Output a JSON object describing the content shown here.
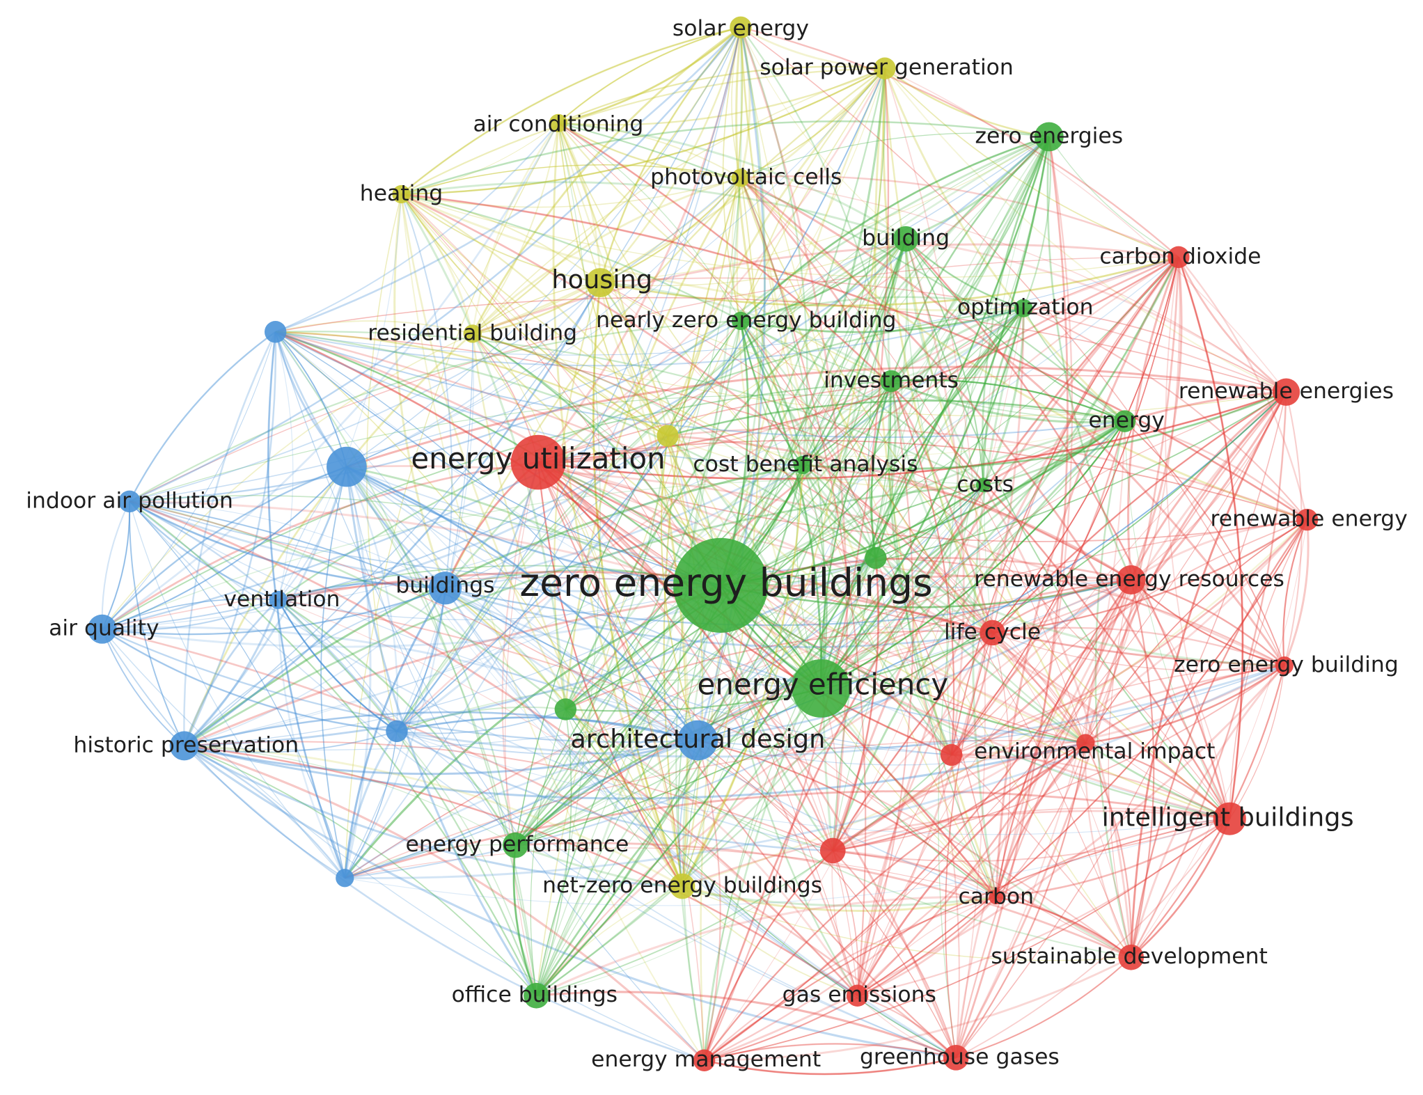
{
  "nodes": [
    {
      "label": "solar energy"
    },
    {
      "label": "solar power generation"
    },
    {
      "label": "air conditioning"
    },
    {
      "label": "zero energies"
    },
    {
      "label": "heating"
    },
    {
      "label": "photovoltaic cells"
    },
    {
      "label": "building"
    },
    {
      "label": "carbon dioxide"
    },
    {
      "label": "housing"
    },
    {
      "label": "optimization"
    },
    {
      "label": "residential building"
    },
    {
      "label": "nearly zero energy building"
    },
    {
      "label": "investments"
    },
    {
      "label": "renewable energies"
    },
    {
      "label": "energy"
    },
    {
      "label": "energy utilization"
    },
    {
      "label": "cost benefit analysis"
    },
    {
      "label": "costs"
    },
    {
      "label": "indoor air pollution"
    },
    {
      "label": "renewable energy"
    },
    {
      "label": "zero energy buildings"
    },
    {
      "label": "buildings"
    },
    {
      "label": "ventilation"
    },
    {
      "label": "renewable energy resources"
    },
    {
      "label": "air quality"
    },
    {
      "label": "life cycle"
    },
    {
      "label": "zero energy building"
    },
    {
      "label": "energy efficiency"
    },
    {
      "label": "architectural design"
    },
    {
      "label": "historic preservation"
    },
    {
      "label": "environmental impact"
    },
    {
      "label": "intelligent buildings"
    },
    {
      "label": "energy performance"
    },
    {
      "label": "net-zero energy buildings"
    },
    {
      "label": "carbon"
    },
    {
      "label": "sustainable development"
    },
    {
      "label": "office buildings"
    },
    {
      "label": "gas emissions"
    },
    {
      "label": "energy management"
    },
    {
      "label": "greenhouse gases"
    }
  ]
}
